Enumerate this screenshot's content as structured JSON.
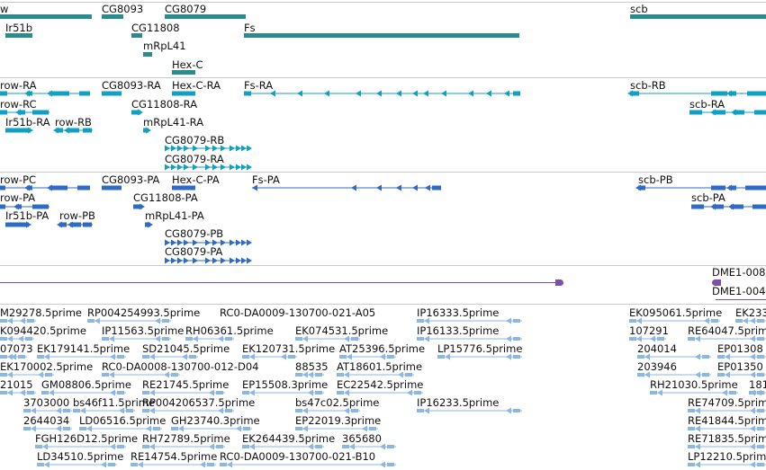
{
  "colors": {
    "gene": "#2a8c8c",
    "transcript_rna": "#12a0c2",
    "protein": "#2f6ac4",
    "chromosome": "#7a50a8",
    "est": "#8bb8e0",
    "track_border": "#c9c9c9"
  },
  "tracks": {
    "genes": {
      "items": [
        {
          "label": "w",
          "label_on": true
        },
        {
          "label": "CG8093"
        },
        {
          "label": "CG8079"
        },
        {
          "label": "scb"
        },
        {
          "label": "Ir51b"
        },
        {
          "label": "CG11808"
        },
        {
          "label": "Fs"
        },
        {
          "label": "mRpL41"
        },
        {
          "label": "Hex-C"
        }
      ]
    },
    "transcripts": {
      "items": [
        {
          "label": "row-RA"
        },
        {
          "label": "CG8093-RA"
        },
        {
          "label": "Hex-C-RA"
        },
        {
          "label": "Fs-RA"
        },
        {
          "label": "scb-RB"
        },
        {
          "label": "row-RC"
        },
        {
          "label": "CG11808-RA"
        },
        {
          "label": "scb-RA"
        },
        {
          "label": "Ir51b-RA"
        },
        {
          "label": "row-RB"
        },
        {
          "label": "mRpL41-RA"
        },
        {
          "label": "CG8079-RB"
        },
        {
          "label": "CG8079-RA"
        }
      ]
    },
    "proteins": {
      "items": [
        {
          "label": "row-PC"
        },
        {
          "label": "CG8093-PA"
        },
        {
          "label": "Hex-C-PA"
        },
        {
          "label": "Fs-PA"
        },
        {
          "label": "scb-PB"
        },
        {
          "label": "row-PA"
        },
        {
          "label": "CG11808-PA"
        },
        {
          "label": "scb-PA"
        },
        {
          "label": "Ir51b-PA"
        },
        {
          "label": "row-PB"
        },
        {
          "label": "mRpL41-PA"
        },
        {
          "label": "CG8079-PB"
        },
        {
          "label": "CG8079-PA"
        }
      ]
    },
    "chromosome": {
      "items": [
        {
          "label": "DME1-008"
        },
        {
          "label": "DME1-004"
        }
      ]
    },
    "ests": {
      "items": [
        {
          "label": "M29278.5prime"
        },
        {
          "label": "RP004254993.5prime"
        },
        {
          "label": "RC0-DA0009-130700-021-A05"
        },
        {
          "label": "IP16333.5prime"
        },
        {
          "label": "EK095061.5prime"
        },
        {
          "label": "EK233"
        },
        {
          "label": "K094420.5prime"
        },
        {
          "label": "IP11563.5prime"
        },
        {
          "label": "RH06361.5prime"
        },
        {
          "label": "EK074531.5prime"
        },
        {
          "label": "IP16133.5prime"
        },
        {
          "label": "107291"
        },
        {
          "label": "RE64047.5prime"
        },
        {
          "label": "07073"
        },
        {
          "label": "EK179141.5prime"
        },
        {
          "label": "SD21045.5prime"
        },
        {
          "label": "EK120731.5prime"
        },
        {
          "label": "AT25396.5prime"
        },
        {
          "label": "LP15776.5prime"
        },
        {
          "label": "204014"
        },
        {
          "label": "EP01308"
        },
        {
          "label": "EK170002.5prime"
        },
        {
          "label": "RC0-DA0008-130700-012-D04"
        },
        {
          "label": "88535"
        },
        {
          "label": "AT18601.5prime"
        },
        {
          "label": "203946"
        },
        {
          "label": "EP01350"
        },
        {
          "label": "21015"
        },
        {
          "label": "GM08806.5prime"
        },
        {
          "label": "RE21745.5prime"
        },
        {
          "label": "EP15508.3prime"
        },
        {
          "label": "EC22542.5prime"
        },
        {
          "label": "RH21030.5prime"
        },
        {
          "label": "181"
        },
        {
          "label": "3703000"
        },
        {
          "label": "bs46f11.5prime"
        },
        {
          "label": "RP004206537.5prime"
        },
        {
          "label": "bs47c02.5prime"
        },
        {
          "label": "IP16233.5prime"
        },
        {
          "label": "RE74709.5prime"
        },
        {
          "label": "2644034"
        },
        {
          "label": "LD06516.5prime"
        },
        {
          "label": "GH23740.3prime"
        },
        {
          "label": "EP22019.3prime"
        },
        {
          "label": "RE41844.5prime"
        },
        {
          "label": "FGH126D12.5prime"
        },
        {
          "label": "RH72789.5prime"
        },
        {
          "label": "EK264439.5prime"
        },
        {
          "label": "365680"
        },
        {
          "label": "RE71835.5prime"
        },
        {
          "label": "LD34510.5prime"
        },
        {
          "label": "RE14754.5prime"
        },
        {
          "label": "RC0-DA0009-130700-021-B10"
        },
        {
          "label": "LP12210.5prime"
        }
      ]
    }
  }
}
